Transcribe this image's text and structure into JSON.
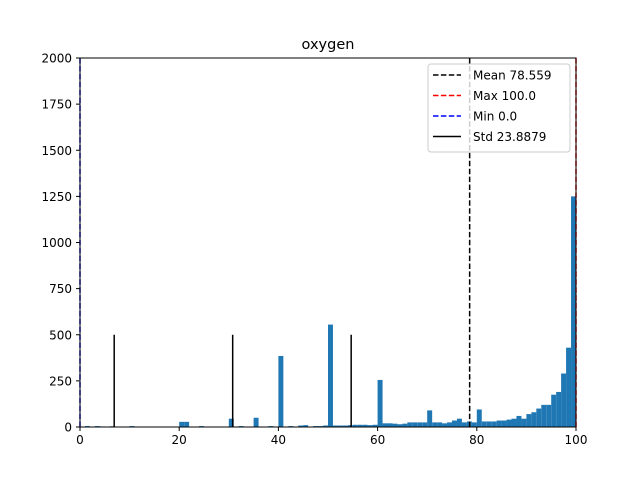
{
  "chart_data": {
    "type": "bar",
    "title": "oxygen",
    "xlabel": "",
    "ylabel": "",
    "xlim": [
      0,
      100
    ],
    "ylim": [
      0,
      2000
    ],
    "xticks": [
      "0",
      "20",
      "40",
      "60",
      "80",
      "100"
    ],
    "yticks": [
      "0",
      "250",
      "500",
      "750",
      "1000",
      "1250",
      "1500",
      "1750",
      "2000"
    ],
    "grid": false,
    "legend_position": "top-right",
    "bin_width": 1,
    "bar_color": "#1f77b4",
    "bins": [
      {
        "x": 1,
        "y": 5
      },
      {
        "x": 3,
        "y": 5
      },
      {
        "x": 4,
        "y": 3
      },
      {
        "x": 6,
        "y": 4
      },
      {
        "x": 10,
        "y": 5
      },
      {
        "x": 15,
        "y": 2
      },
      {
        "x": 20,
        "y": 28
      },
      {
        "x": 21,
        "y": 28
      },
      {
        "x": 24,
        "y": 5
      },
      {
        "x": 30,
        "y": 45
      },
      {
        "x": 32,
        "y": 5
      },
      {
        "x": 35,
        "y": 50
      },
      {
        "x": 38,
        "y": 5
      },
      {
        "x": 40,
        "y": 385
      },
      {
        "x": 42,
        "y": 5
      },
      {
        "x": 44,
        "y": 8
      },
      {
        "x": 45,
        "y": 10
      },
      {
        "x": 47,
        "y": 5
      },
      {
        "x": 48,
        "y": 5
      },
      {
        "x": 49,
        "y": 8
      },
      {
        "x": 50,
        "y": 555
      },
      {
        "x": 51,
        "y": 8
      },
      {
        "x": 52,
        "y": 8
      },
      {
        "x": 53,
        "y": 8
      },
      {
        "x": 54,
        "y": 10
      },
      {
        "x": 55,
        "y": 12
      },
      {
        "x": 56,
        "y": 12
      },
      {
        "x": 57,
        "y": 12
      },
      {
        "x": 58,
        "y": 10
      },
      {
        "x": 59,
        "y": 12
      },
      {
        "x": 60,
        "y": 255
      },
      {
        "x": 61,
        "y": 20
      },
      {
        "x": 62,
        "y": 20
      },
      {
        "x": 63,
        "y": 18
      },
      {
        "x": 64,
        "y": 15
      },
      {
        "x": 65,
        "y": 18
      },
      {
        "x": 66,
        "y": 25
      },
      {
        "x": 67,
        "y": 25
      },
      {
        "x": 68,
        "y": 25
      },
      {
        "x": 69,
        "y": 25
      },
      {
        "x": 70,
        "y": 90
      },
      {
        "x": 71,
        "y": 25
      },
      {
        "x": 72,
        "y": 25
      },
      {
        "x": 73,
        "y": 20
      },
      {
        "x": 74,
        "y": 25
      },
      {
        "x": 75,
        "y": 35
      },
      {
        "x": 76,
        "y": 45
      },
      {
        "x": 77,
        "y": 25
      },
      {
        "x": 78,
        "y": 30
      },
      {
        "x": 79,
        "y": 25
      },
      {
        "x": 80,
        "y": 95
      },
      {
        "x": 81,
        "y": 30
      },
      {
        "x": 82,
        "y": 30
      },
      {
        "x": 83,
        "y": 30
      },
      {
        "x": 84,
        "y": 35
      },
      {
        "x": 85,
        "y": 35
      },
      {
        "x": 86,
        "y": 40
      },
      {
        "x": 87,
        "y": 45
      },
      {
        "x": 88,
        "y": 60
      },
      {
        "x": 89,
        "y": 45
      },
      {
        "x": 90,
        "y": 70
      },
      {
        "x": 91,
        "y": 80
      },
      {
        "x": 92,
        "y": 100
      },
      {
        "x": 93,
        "y": 120
      },
      {
        "x": 94,
        "y": 120
      },
      {
        "x": 95,
        "y": 175
      },
      {
        "x": 96,
        "y": 190
      },
      {
        "x": 97,
        "y": 290
      },
      {
        "x": 98,
        "y": 430
      },
      {
        "x": 99,
        "y": 1250
      }
    ],
    "lines": [
      {
        "label": "Mean 78.559",
        "x": 78.559,
        "color": "#000000",
        "style": "dashed",
        "y_top": 2000,
        "legend": true
      },
      {
        "label": "Max 100.0",
        "x": 100.0,
        "color": "#ff0000",
        "style": "dashed",
        "y_top": 2000,
        "legend": true
      },
      {
        "label": "Min 0.0",
        "x": 0.0,
        "color": "#0000ff",
        "style": "dashed",
        "y_top": 2000,
        "legend": true
      },
      {
        "label": "Std 23.8879",
        "x": 54.6711,
        "color": "#000000",
        "style": "solid",
        "y_top": 500,
        "legend": true
      },
      {
        "label": "",
        "x": 30.7832,
        "color": "#000000",
        "style": "solid",
        "y_top": 500,
        "legend": false
      },
      {
        "label": "",
        "x": 6.8953,
        "color": "#000000",
        "style": "solid",
        "y_top": 500,
        "legend": false
      }
    ]
  }
}
